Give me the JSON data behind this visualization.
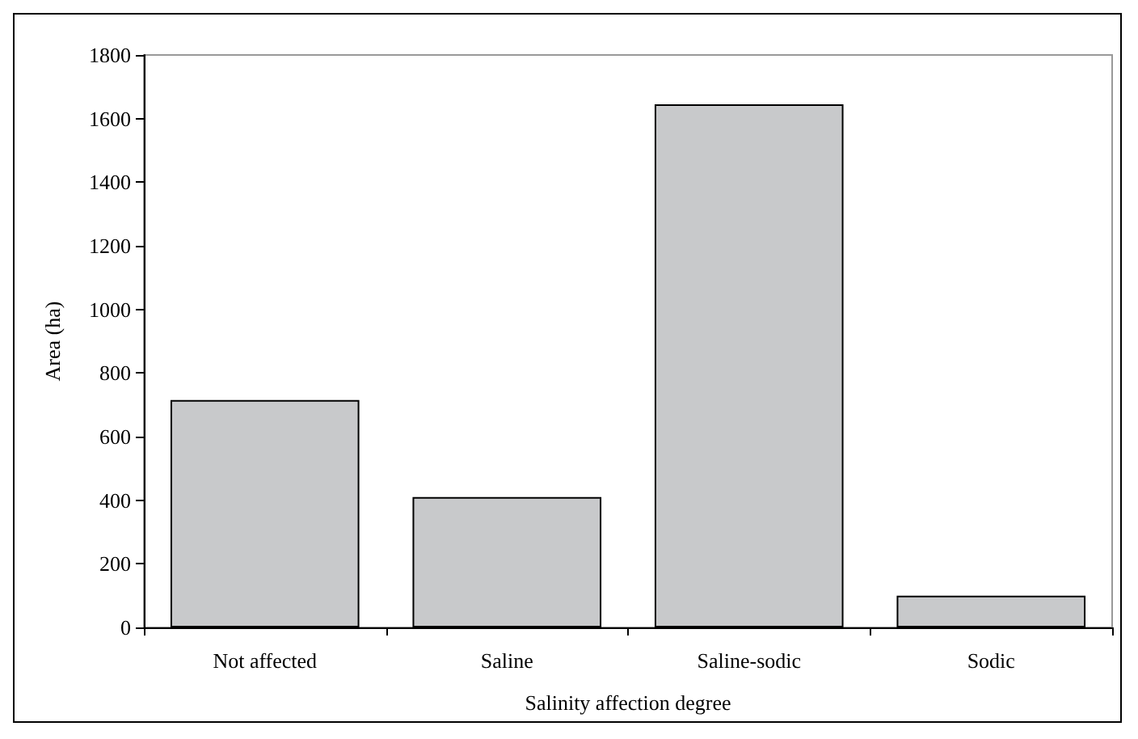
{
  "chart_data": {
    "type": "bar",
    "xlabel": "Salinity affection degree",
    "ylabel": "Area (ha)",
    "categories": [
      "Not affected",
      "Saline",
      "Saline-sodic",
      "Sodic"
    ],
    "values": [
      715,
      410,
      1645,
      100
    ],
    "color": "#c8c9cb",
    "ylim": [
      0,
      1800
    ],
    "yticks": [
      0,
      200,
      400,
      600,
      800,
      1000,
      1200,
      1400,
      1600,
      1800
    ],
    "grid": false
  }
}
